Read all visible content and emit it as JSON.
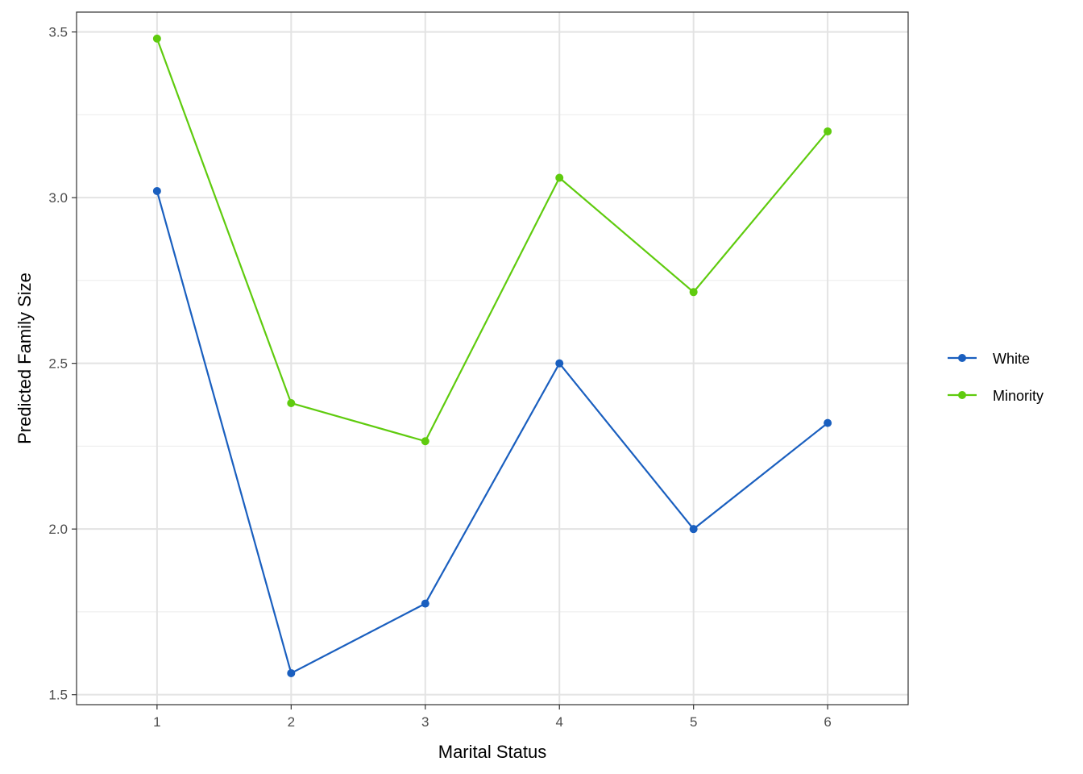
{
  "chart_data": {
    "type": "line",
    "title": "",
    "xlabel": "Marital Status",
    "ylabel": "Predicted Family Size",
    "x": [
      1,
      2,
      3,
      4,
      5,
      6
    ],
    "x_tick_labels": [
      "1",
      "2",
      "3",
      "4",
      "5",
      "6"
    ],
    "xlim": [
      0.4,
      6.6
    ],
    "y_ticks": [
      1.5,
      2.0,
      2.5,
      3.0,
      3.5
    ],
    "y_tick_labels": [
      "1.5",
      "2.0",
      "2.5",
      "3.0",
      "3.5"
    ],
    "ylim": [
      1.47,
      3.56
    ],
    "grid": true,
    "legend_position": "right",
    "series": [
      {
        "name": "White",
        "color": "#1a5fbf",
        "values": [
          3.02,
          1.565,
          1.775,
          2.5,
          2.0,
          2.32
        ]
      },
      {
        "name": "Minority",
        "color": "#5fcb0e",
        "values": [
          3.48,
          2.38,
          2.265,
          3.06,
          2.715,
          3.2
        ]
      }
    ]
  }
}
